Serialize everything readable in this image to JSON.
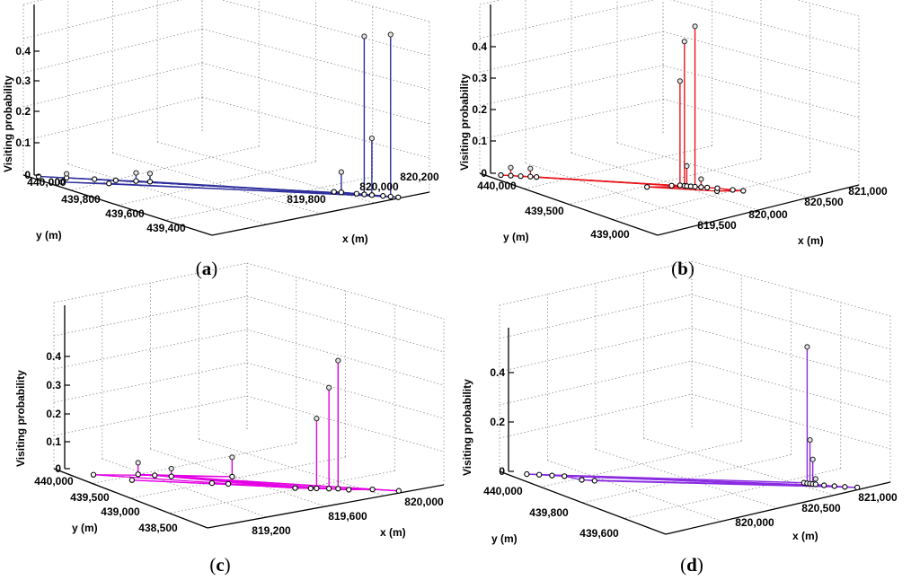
{
  "figure": {
    "background": "#ffffff",
    "grid_color": "#8a8a8a"
  },
  "chart_data": [
    {
      "type": "scatter3d",
      "panel": "a",
      "caption_letter": "a",
      "color": "#2e2e9c",
      "zlabel": "Visiting probability",
      "xlabel": "x (m)",
      "ylabel": "y (m)",
      "zlim": [
        0,
        0.4
      ],
      "zticks": [
        "0",
        "0.1",
        "0.2",
        "0.3",
        "0.4"
      ],
      "xticks": [
        "819,800",
        "820,000",
        "820,200"
      ],
      "yticks": [
        "440,000",
        "439,800",
        "439,600",
        "439,400"
      ],
      "points": [
        {
          "x": 819720,
          "y": 440010,
          "z": 0.0
        },
        {
          "x": 819760,
          "y": 440000,
          "z": 0.01
        },
        {
          "x": 819800,
          "y": 439990,
          "z": 0.0
        },
        {
          "x": 819830,
          "y": 439975,
          "z": 0.0
        },
        {
          "x": 819860,
          "y": 439985,
          "z": 0.02
        },
        {
          "x": 819880,
          "y": 439980,
          "z": 0.02
        },
        {
          "x": 819740,
          "y": 439760,
          "z": 0.0
        },
        {
          "x": 819810,
          "y": 439790,
          "z": 0.0
        },
        {
          "x": 820140,
          "y": 439850,
          "z": 0.0
        },
        {
          "x": 820150,
          "y": 439840,
          "z": 0.05
        },
        {
          "x": 820170,
          "y": 439800,
          "z": 0.0
        },
        {
          "x": 820180,
          "y": 439780,
          "z": 0.39
        },
        {
          "x": 820190,
          "y": 439760,
          "z": 0.14
        },
        {
          "x": 820205,
          "y": 439740,
          "z": 0.0
        },
        {
          "x": 820215,
          "y": 439720,
          "z": 0.4
        },
        {
          "x": 820225,
          "y": 439700,
          "z": 0.0
        }
      ],
      "edges": [
        [
          0,
          1
        ],
        [
          1,
          2
        ],
        [
          2,
          3
        ],
        [
          3,
          4
        ],
        [
          4,
          5
        ],
        [
          0,
          10
        ],
        [
          2,
          13
        ],
        [
          5,
          12
        ],
        [
          3,
          15
        ],
        [
          1,
          11
        ],
        [
          6,
          13
        ],
        [
          7,
          15
        ],
        [
          4,
          14
        ],
        [
          8,
          9
        ],
        [
          9,
          10
        ],
        [
          10,
          11
        ],
        [
          11,
          12
        ],
        [
          12,
          13
        ],
        [
          13,
          14
        ],
        [
          14,
          15
        ],
        [
          6,
          7
        ],
        [
          8,
          11
        ],
        [
          9,
          13
        ]
      ]
    },
    {
      "type": "scatter3d",
      "panel": "b",
      "caption_letter": "b",
      "color": "#e8151b",
      "zlabel": "Visiting probability",
      "xlabel": "x (m)",
      "ylabel": "y (m)",
      "zlim": [
        0,
        0.4
      ],
      "zticks": [
        "0",
        "0.1",
        "0.2",
        "0.3",
        "0.4"
      ],
      "xticks": [
        "819,500",
        "820,000",
        "820,500",
        "821,000"
      ],
      "yticks": [
        "440,000",
        "439,500",
        "439,000"
      ],
      "points": [
        {
          "x": 819300,
          "y": 440050,
          "z": 0.0
        },
        {
          "x": 819350,
          "y": 440030,
          "z": 0.02
        },
        {
          "x": 819400,
          "y": 440010,
          "z": 0.0
        },
        {
          "x": 819450,
          "y": 440000,
          "z": 0.02
        },
        {
          "x": 819480,
          "y": 439980,
          "z": 0.0
        },
        {
          "x": 820000,
          "y": 439420,
          "z": 0.0
        },
        {
          "x": 820350,
          "y": 439250,
          "z": 0.0
        },
        {
          "x": 820150,
          "y": 439600,
          "z": 0.0
        },
        {
          "x": 820200,
          "y": 439650,
          "z": 0.26
        },
        {
          "x": 820220,
          "y": 439620,
          "z": 0.36
        },
        {
          "x": 820230,
          "y": 439600,
          "z": 0.05
        },
        {
          "x": 820250,
          "y": 439590,
          "z": 0.0
        },
        {
          "x": 820270,
          "y": 439570,
          "z": 0.4
        },
        {
          "x": 820300,
          "y": 439550,
          "z": 0.02
        },
        {
          "x": 820330,
          "y": 439530,
          "z": 0.0
        },
        {
          "x": 820380,
          "y": 439500,
          "z": 0.0
        },
        {
          "x": 820450,
          "y": 439400,
          "z": 0.0
        },
        {
          "x": 820500,
          "y": 439350,
          "z": 0.0
        }
      ],
      "edges": [
        [
          0,
          1
        ],
        [
          1,
          2
        ],
        [
          2,
          3
        ],
        [
          3,
          4
        ],
        [
          0,
          7
        ],
        [
          2,
          11
        ],
        [
          4,
          13
        ],
        [
          1,
          14
        ],
        [
          5,
          6
        ],
        [
          5,
          11
        ],
        [
          5,
          14
        ],
        [
          6,
          16
        ],
        [
          6,
          17
        ],
        [
          7,
          8
        ],
        [
          8,
          9
        ],
        [
          9,
          10
        ],
        [
          10,
          11
        ],
        [
          11,
          12
        ],
        [
          12,
          13
        ],
        [
          13,
          14
        ],
        [
          14,
          15
        ],
        [
          15,
          16
        ],
        [
          16,
          17
        ],
        [
          7,
          14
        ],
        [
          10,
          15
        ],
        [
          3,
          12
        ]
      ]
    },
    {
      "type": "scatter3d",
      "panel": "c",
      "caption_letter": "c",
      "color": "#e400e4",
      "zlabel": "Visiting probability",
      "xlabel": "x (m)",
      "ylabel": "y (m)",
      "zlim": [
        0,
        0.4
      ],
      "zticks": [
        "0",
        "0.1",
        "0.2",
        "0.3",
        "0.4"
      ],
      "xticks": [
        "819,200",
        "819,600",
        "820,000"
      ],
      "yticks": [
        "440,000",
        "439,500",
        "439,000",
        "438,500"
      ],
      "points": [
        {
          "x": 819050,
          "y": 439800,
          "z": 0.0
        },
        {
          "x": 819150,
          "y": 439200,
          "z": 0.0
        },
        {
          "x": 819200,
          "y": 440150,
          "z": 0.03
        },
        {
          "x": 819250,
          "y": 440100,
          "z": 0.0
        },
        {
          "x": 819300,
          "y": 440050,
          "z": 0.02
        },
        {
          "x": 819500,
          "y": 440400,
          "z": 0.05
        },
        {
          "x": 819400,
          "y": 439250,
          "z": 0.0
        },
        {
          "x": 819450,
          "y": 439230,
          "z": 0.0
        },
        {
          "x": 819650,
          "y": 439000,
          "z": 0.0
        },
        {
          "x": 819700,
          "y": 439050,
          "z": 0.0
        },
        {
          "x": 819720,
          "y": 439100,
          "z": 0.18
        },
        {
          "x": 819760,
          "y": 439150,
          "z": 0.26
        },
        {
          "x": 819790,
          "y": 439200,
          "z": 0.33
        },
        {
          "x": 819820,
          "y": 439100,
          "z": 0.0
        },
        {
          "x": 819900,
          "y": 439300,
          "z": 0.0
        },
        {
          "x": 819980,
          "y": 439250,
          "z": 0.0
        }
      ],
      "edges": [
        [
          0,
          3
        ],
        [
          0,
          8
        ],
        [
          1,
          9
        ],
        [
          2,
          3
        ],
        [
          3,
          4
        ],
        [
          4,
          5
        ],
        [
          2,
          5
        ],
        [
          3,
          8
        ],
        [
          4,
          9
        ],
        [
          3,
          13
        ],
        [
          2,
          14
        ],
        [
          4,
          15
        ],
        [
          6,
          7
        ],
        [
          7,
          8
        ],
        [
          8,
          9
        ],
        [
          9,
          10
        ],
        [
          10,
          11
        ],
        [
          11,
          12
        ],
        [
          12,
          13
        ],
        [
          13,
          14
        ],
        [
          14,
          15
        ],
        [
          1,
          13
        ],
        [
          6,
          13
        ],
        [
          9,
          14
        ]
      ]
    },
    {
      "type": "scatter3d",
      "panel": "d",
      "caption_letter": "d",
      "color": "#8a2be2",
      "zlabel": "Visiting probability",
      "xlabel": "x (m)",
      "ylabel": "y (m)",
      "zlim": [
        0,
        0.5
      ],
      "zticks": [
        "0",
        "0.2",
        "0.4"
      ],
      "xticks": [
        "820,000",
        "820,500",
        "821,000"
      ],
      "yticks": [
        "440,000",
        "439,800",
        "439,600"
      ],
      "points": [
        {
          "x": 819600,
          "y": 440020,
          "z": 0.0
        },
        {
          "x": 819650,
          "y": 440010,
          "z": 0.0
        },
        {
          "x": 819700,
          "y": 439990,
          "z": 0.0
        },
        {
          "x": 819750,
          "y": 439980,
          "z": 0.0
        },
        {
          "x": 819800,
          "y": 439850,
          "z": 0.0
        },
        {
          "x": 819850,
          "y": 439830,
          "z": 0.0
        },
        {
          "x": 820750,
          "y": 439980,
          "z": 0.0
        },
        {
          "x": 820760,
          "y": 439960,
          "z": 0.5
        },
        {
          "x": 820770,
          "y": 439950,
          "z": 0.16
        },
        {
          "x": 820780,
          "y": 439940,
          "z": 0.09
        },
        {
          "x": 820790,
          "y": 439930,
          "z": 0.02
        },
        {
          "x": 820820,
          "y": 439900,
          "z": 0.0
        },
        {
          "x": 820860,
          "y": 439880,
          "z": 0.0
        },
        {
          "x": 820900,
          "y": 439860,
          "z": 0.0
        },
        {
          "x": 820950,
          "y": 439850,
          "z": 0.0
        }
      ],
      "edges": [
        [
          0,
          1
        ],
        [
          1,
          2
        ],
        [
          2,
          3
        ],
        [
          3,
          4
        ],
        [
          4,
          5
        ],
        [
          0,
          6
        ],
        [
          1,
          11
        ],
        [
          2,
          12
        ],
        [
          3,
          13
        ],
        [
          5,
          14
        ],
        [
          4,
          12
        ],
        [
          6,
          7
        ],
        [
          7,
          8
        ],
        [
          8,
          9
        ],
        [
          9,
          10
        ],
        [
          10,
          11
        ],
        [
          11,
          12
        ],
        [
          12,
          13
        ],
        [
          13,
          14
        ],
        [
          0,
          14
        ]
      ]
    }
  ]
}
